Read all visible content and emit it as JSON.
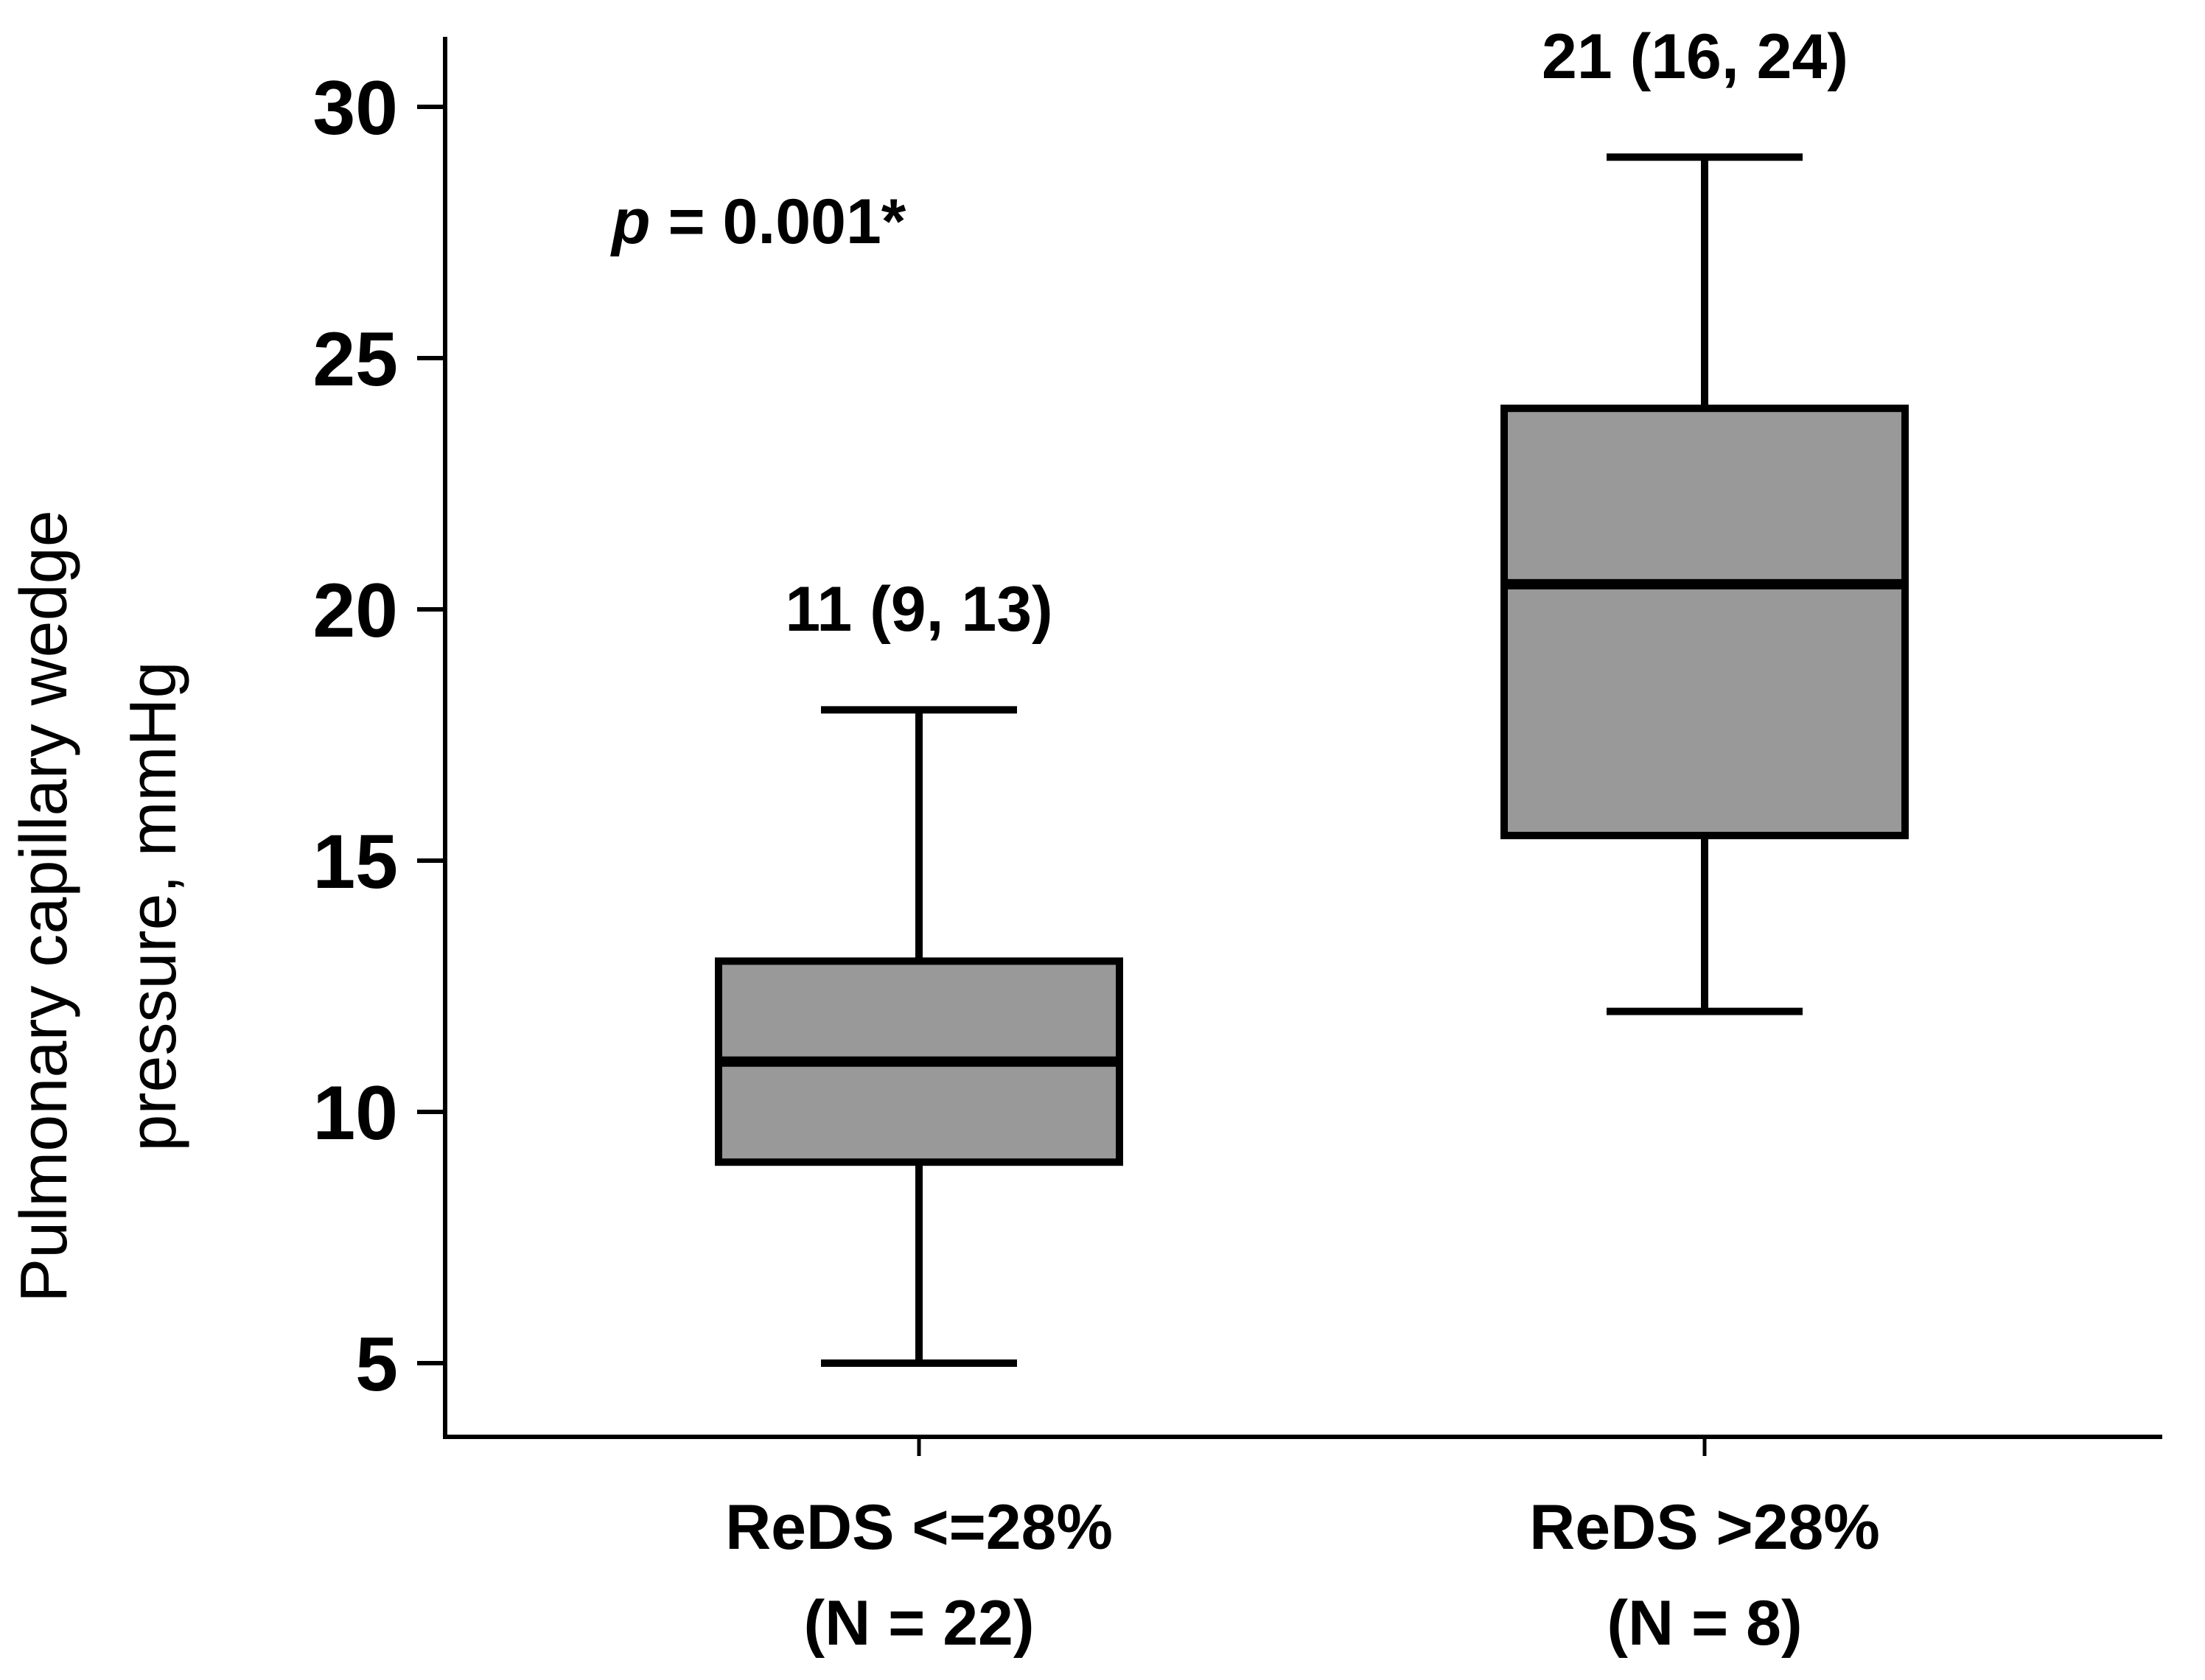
{
  "chart_data": {
    "type": "box",
    "title": "",
    "xlabel": "",
    "ylabel_lines": [
      "Pulmonary capillary wedge",
      "pressure, mmHg"
    ],
    "ylim": [
      3.5,
      31.5
    ],
    "yticks": [
      5,
      10,
      15,
      20,
      25,
      30
    ],
    "ytick_labels": [
      "5",
      "10",
      "15",
      "20",
      "25",
      "30"
    ],
    "categories": [
      {
        "label_line1": "ReDS <=28%",
        "label_line2": "(N = 22)",
        "annotation": "11 (9, 13)",
        "whisker_low": 5,
        "q1": 9,
        "median": 11,
        "q3": 13,
        "whisker_high": 18
      },
      {
        "label_line1": "ReDS >28%",
        "label_line2": "(N = 8)",
        "annotation": "21 (16, 24)",
        "whisker_low": 12,
        "q1": 15.5,
        "median": 20.5,
        "q3": 24,
        "whisker_high": 29
      }
    ],
    "p_value": {
      "symbol": "p",
      "text": " = 0.001*"
    },
    "colors": {
      "box_fill": "#999999",
      "line": "#000000"
    }
  }
}
